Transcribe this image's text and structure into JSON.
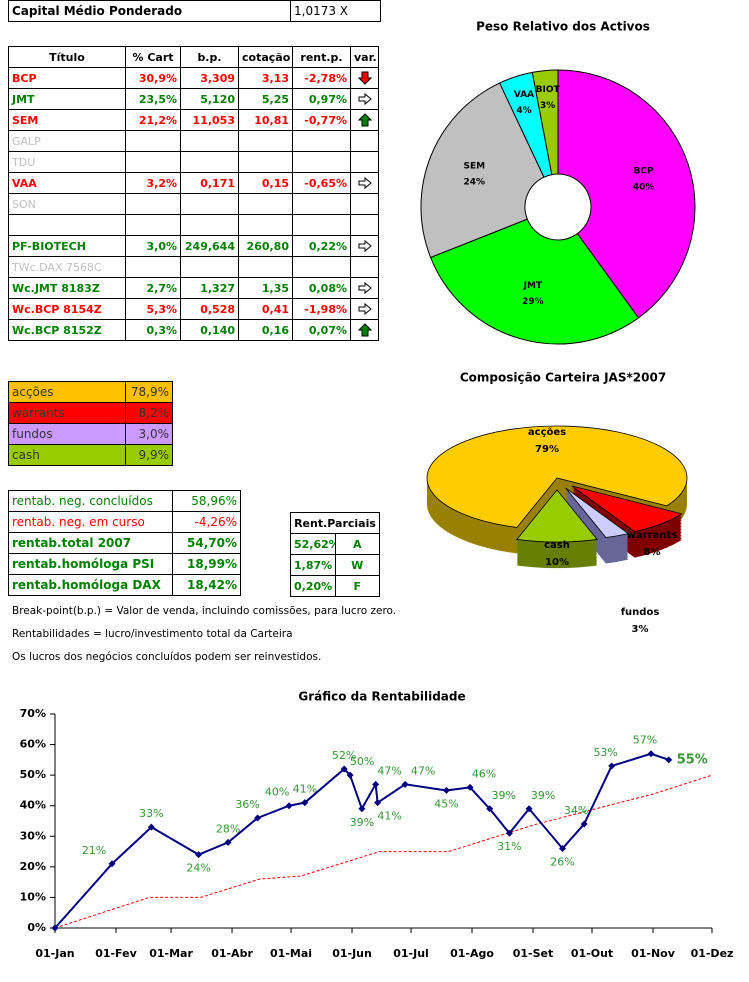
{
  "header": {
    "label": "Capital Médio Ponderado",
    "value": "1,0173 X"
  },
  "holdings": {
    "columns": [
      "Título",
      "% Cart",
      "b.p.",
      "cotação",
      "rent.p.",
      "var."
    ],
    "rows": [
      [
        "BCP",
        "30,9%",
        "3,309",
        "3,13",
        "-2,78%"
      ],
      [
        "JMT",
        "23,5%",
        "5,120",
        "5,25",
        "0,97%"
      ],
      [
        "SEM",
        "21,2%",
        "11,053",
        "10,81",
        "-0,77%"
      ],
      [
        "GALP"
      ],
      [
        "TDU"
      ],
      [
        "VAA",
        "3,2%",
        "0,171",
        "0,15",
        "-0,65%"
      ],
      [
        "SON"
      ],
      [],
      [
        "PF-BIOTECH",
        "3,0%",
        "249,644",
        "260,80",
        "0,22%"
      ],
      [
        "TWc.DAX 7568C"
      ],
      [
        "Wc.JMT 8183Z",
        "2,7%",
        "1,327",
        "1,35",
        "0,08%"
      ],
      [
        "Wc.BCP 8154Z",
        "5,3%",
        "0,528",
        "0,41",
        "-1,98%"
      ],
      [
        "Wc.BCP 8152Z",
        "0,3%",
        "0,140",
        "0,16",
        "0,07%"
      ]
    ]
  },
  "allocation": {
    "rows": [
      [
        "acções",
        "78,9%"
      ],
      [
        "warrants",
        "8,2%"
      ],
      [
        "fundos",
        "3,0%"
      ],
      [
        "cash",
        "9,9%"
      ]
    ]
  },
  "returns": {
    "rows": [
      [
        "rentab. neg. concluídos",
        "58,96%"
      ],
      [
        "rentab. neg. em curso",
        "-4,26%"
      ],
      [
        "rentab.total 2007",
        "54,70%"
      ],
      [
        "rentab.homóloga PSI",
        "18,99%"
      ],
      [
        "rentab.homóloga DAX",
        "18,42%"
      ]
    ]
  },
  "partial_returns": {
    "title": "Rent.Parciais",
    "rows": [
      [
        "52,62%",
        "A"
      ],
      [
        "1,87%",
        "W"
      ],
      [
        "0,20%",
        "F"
      ]
    ]
  },
  "notes": [
    "Break-point(b.p.) = Valor de venda, incluindo comissões, para lucro zero.",
    "Rentabilidades = lucro/investimento total da Carteira",
    "Os lucros dos negócios concluídos podem ser reinvestidos."
  ],
  "chart_data": [
    {
      "type": "donut",
      "title": "Peso Relativo dos Activos",
      "categories": [
        "BCP",
        "JMT",
        "SEM",
        "VAA",
        "BIOT"
      ],
      "values": [
        40,
        29,
        24,
        4,
        3
      ],
      "value_labels": [
        "40%",
        "29%",
        "24%",
        "4%",
        "3%"
      ],
      "colors": [
        "#ff00ff",
        "#00ff00",
        "#c0c0c0",
        "#00ffff",
        "#99cc00"
      ]
    },
    {
      "type": "pie3d",
      "title": "Composição Carteira JAS*2007",
      "categories": [
        "acções",
        "warrants",
        "fundos",
        "cash"
      ],
      "values": [
        79,
        8,
        3,
        10
      ],
      "value_labels": [
        "79%",
        "8%",
        "3%",
        "10%"
      ],
      "colors": [
        "#ffcc00",
        "#ff0000",
        "#ccccff",
        "#99cc00"
      ]
    },
    {
      "type": "line",
      "title": "Gráfico da Rentabilidade",
      "xlim": [
        0,
        334
      ],
      "xticks": [
        {
          "value": 0,
          "label": "01-Jan"
        },
        {
          "value": 31,
          "label": "01-Fev"
        },
        {
          "value": 59,
          "label": "01-Mar"
        },
        {
          "value": 90,
          "label": "01-Abr"
        },
        {
          "value": 120,
          "label": "01-Mai"
        },
        {
          "value": 151,
          "label": "01-Jun"
        },
        {
          "value": 181,
          "label": "01-Jul"
        },
        {
          "value": 212,
          "label": "01-Ago"
        },
        {
          "value": 243,
          "label": "01-Set"
        },
        {
          "value": 273,
          "label": "01-Out"
        },
        {
          "value": 304,
          "label": "01-Nov"
        },
        {
          "value": 334,
          "label": "01-Dez"
        }
      ],
      "ylim": [
        0,
        70
      ],
      "yticks": [
        {
          "value": 0,
          "label": "0%"
        },
        {
          "value": 10,
          "label": "10%"
        },
        {
          "value": 20,
          "label": "20%"
        },
        {
          "value": 30,
          "label": "30%"
        },
        {
          "value": 40,
          "label": "40%"
        },
        {
          "value": 50,
          "label": "50%"
        },
        {
          "value": 60,
          "label": "60%"
        },
        {
          "value": 70,
          "label": "70%"
        }
      ],
      "series": [
        {
          "color": "#000080",
          "x": [
            0,
            29,
            49,
            73,
            88,
            103,
            119,
            127,
            147,
            150,
            156,
            163,
            164,
            178,
            199,
            211,
            221,
            231,
            241,
            258,
            269,
            283,
            303,
            312
          ],
          "values": [
            0,
            21,
            33,
            24,
            28,
            36,
            40,
            41,
            52,
            50,
            39,
            47,
            41,
            47,
            45,
            46,
            39,
            31,
            39,
            26,
            34,
            53,
            57,
            55
          ],
          "value_labels": [
            null,
            "21%",
            "33%",
            "24%",
            "28%",
            "36%",
            "40%",
            "41%",
            "52%",
            "50%",
            "39%",
            "47%",
            "41%",
            "47%",
            "45%",
            "46%",
            "39%",
            "31%",
            "39%",
            "26%",
            "34%",
            "53%",
            "57%",
            "55%"
          ]
        },
        {
          "color": "#ff0000",
          "dashed": true,
          "x": [
            0,
            48,
            74,
            104,
            125,
            150,
            165,
            200,
            220,
            245,
            275,
            305,
            334
          ],
          "values": [
            0,
            10,
            10,
            16,
            17,
            22,
            25,
            25,
            29,
            34,
            39,
            44,
            50
          ]
        }
      ]
    }
  ]
}
